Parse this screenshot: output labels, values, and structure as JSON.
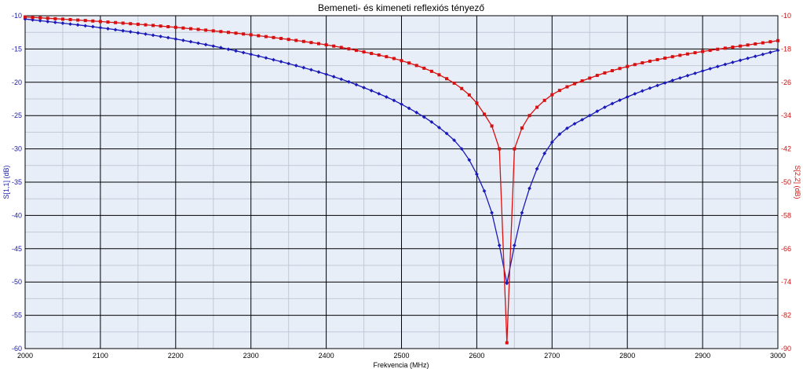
{
  "chart_data": {
    "type": "line",
    "title": "Bemeneti- és kimeneti reflexiós tényező",
    "xlabel": "Frekvencia (MHz)",
    "ylabel_left": "S[1,1] (dB)",
    "ylabel_right": "S[2,2] (dB)",
    "xlim": [
      2000,
      3000
    ],
    "ylim_left": [
      -60,
      -10
    ],
    "ylim_right": [
      -90,
      -10
    ],
    "x_ticks": [
      "2000",
      "2100",
      "2200",
      "2300",
      "2400",
      "2500",
      "2600",
      "2700",
      "2800",
      "2900",
      "3000"
    ],
    "y_ticks_left": [
      "-10",
      "-15",
      "-20",
      "-25",
      "-30",
      "-35",
      "-40",
      "-45",
      "-50",
      "-55",
      "-60"
    ],
    "y_ticks_right": [
      "-10",
      "-18",
      "-26",
      "-34",
      "-42",
      "-50",
      "-58",
      "-66",
      "-74",
      "-82",
      "-90"
    ],
    "grid": true,
    "series": [
      {
        "name": "S[1,1] (dB)",
        "axis": "left",
        "color": "#1a1ab8",
        "marker": "diamond",
        "x": [
          2000,
          2100,
          2200,
          2300,
          2400,
          2450,
          2500,
          2550,
          2580,
          2600,
          2620,
          2630,
          2640,
          2650,
          2660,
          2680,
          2700,
          2750,
          2800,
          2900,
          3000
        ],
        "values": [
          -10.5,
          -11.8,
          -13.5,
          -15.8,
          -18.8,
          -20.8,
          -23.3,
          -26.8,
          -30.0,
          -33.8,
          -39.6,
          -44.5,
          -50.2,
          -44.5,
          -39.6,
          -33.0,
          -29.0,
          -25.0,
          -22.2,
          -18.3,
          -15.2
        ]
      },
      {
        "name": "S[2,2] (dB)",
        "axis": "right",
        "color": "#d81010",
        "marker": "square",
        "x": [
          2000,
          2100,
          2200,
          2300,
          2400,
          2450,
          2500,
          2550,
          2580,
          2600,
          2620,
          2630,
          2640,
          2650,
          2660,
          2670,
          2680,
          2700,
          2750,
          2800,
          2850,
          2900,
          2950,
          3000
        ],
        "values": [
          -10.3,
          -11.4,
          -12.8,
          -14.6,
          -17.0,
          -18.7,
          -20.8,
          -24.2,
          -27.5,
          -31.0,
          -36.5,
          -42.0,
          -88.6,
          -42.0,
          -37.0,
          -34.0,
          -32.0,
          -29.0,
          -25.0,
          -22.2,
          -20.2,
          -18.6,
          -17.3,
          -16.0
        ]
      }
    ]
  }
}
